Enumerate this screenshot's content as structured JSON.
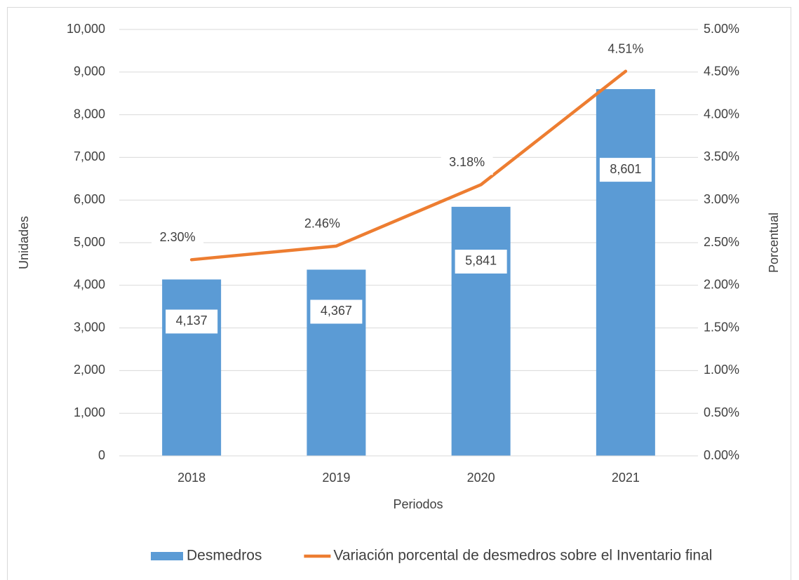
{
  "chart_data": {
    "type": "bar",
    "categories": [
      "2018",
      "2019",
      "2020",
      "2021"
    ],
    "xlabel": "Periodos",
    "ylabel": "Unidades",
    "y2label": "Porcentual",
    "ylim": [
      0,
      10000
    ],
    "yticks": [
      0,
      {
        "value": 1000,
        "label": "1,000"
      },
      {
        "value": 2000,
        "label": "2,000"
      },
      {
        "value": 3000,
        "label": "3,000"
      },
      {
        "value": 4000,
        "label": "4,000"
      },
      {
        "value": 5000,
        "label": "5,000"
      },
      {
        "value": 6000,
        "label": "6,000"
      },
      {
        "value": 7000,
        "label": "7,000"
      },
      {
        "value": 8000,
        "label": "8,000"
      },
      {
        "value": 9000,
        "label": "9,000"
      },
      {
        "value": 10000,
        "label": "10,000"
      }
    ],
    "y2lim": [
      0,
      5
    ],
    "y2ticks": [
      {
        "value": 0,
        "label": "0.00%"
      },
      {
        "value": 0.5,
        "label": "0.50%"
      },
      {
        "value": 1,
        "label": "1.00%"
      },
      {
        "value": 1.5,
        "label": "1.50%"
      },
      {
        "value": 2,
        "label": "2.00%"
      },
      {
        "value": 2.5,
        "label": "2.50%"
      },
      {
        "value": 3,
        "label": "3.00%"
      },
      {
        "value": 3.5,
        "label": "3.50%"
      },
      {
        "value": 4,
        "label": "4.00%"
      },
      {
        "value": 4.5,
        "label": "4.50%"
      },
      {
        "value": 5,
        "label": "5.00%"
      }
    ],
    "grid": true,
    "legend": "bottom",
    "series": [
      {
        "name": "Desmedros",
        "type": "bar",
        "color": "#5b9bd5",
        "values": [
          4137,
          4367,
          5841,
          8601
        ],
        "value_labels": [
          "4,137",
          "4,367",
          "5,841",
          "8,601"
        ]
      },
      {
        "name": "Variación porcental de desmedros sobre el Inventario final",
        "type": "line",
        "axis": "y2",
        "color": "#ed7d31",
        "values": [
          2.3,
          2.46,
          3.18,
          4.51
        ],
        "value_labels": [
          "2.30%",
          "2.46%",
          "3.18%",
          "4.51%"
        ]
      }
    ]
  }
}
